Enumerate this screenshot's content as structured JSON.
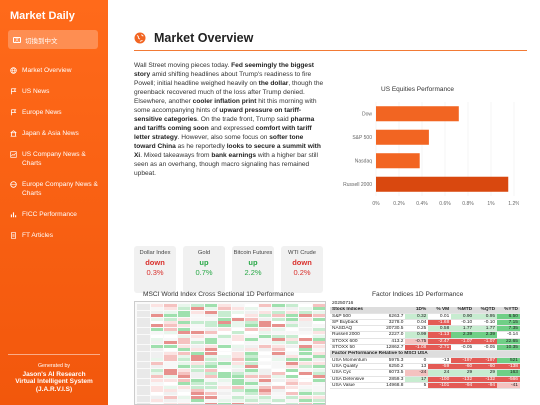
{
  "sidebar": {
    "brand": "Market Daily",
    "language_button": "切換到中文",
    "items": [
      {
        "label": "Market Overview",
        "icon": "globe-icon"
      },
      {
        "label": "US News",
        "icon": "flag-icon"
      },
      {
        "label": "Europe News",
        "icon": "flag-icon"
      },
      {
        "label": "Japan & Asia News",
        "icon": "building-icon"
      },
      {
        "label": "US Company News & Charts",
        "icon": "chart-icon"
      },
      {
        "label": "Europe Company News & Charts",
        "icon": "globe-icon"
      },
      {
        "label": "FICC Performance",
        "icon": "bar-chart-icon"
      },
      {
        "label": "FT Articles",
        "icon": "document-icon"
      }
    ],
    "credit_line1": "Generated by",
    "credit_line2": "Jason's AI Research",
    "credit_line3": "Virtual Intelligent System",
    "credit_line4": "(J.A.R.V.I.S)"
  },
  "main": {
    "title": "Market Overview"
  },
  "cards": [
    {
      "name": "Dollar Index",
      "direction": "down",
      "pct": "0.3%"
    },
    {
      "name": "Gold",
      "direction": "up",
      "pct": "0.7%"
    },
    {
      "name": "Bitcoin Futures",
      "direction": "up",
      "pct": "2.2%"
    },
    {
      "name": "WTI Crude",
      "direction": "down",
      "pct": "0.2%"
    }
  ],
  "chart_data": {
    "type": "bar",
    "title": "US Equities Performance",
    "categories": [
      "Dow",
      "S&P 500",
      "Nasdaq",
      "Russell 2000"
    ],
    "values": [
      0.72,
      0.46,
      0.38,
      1.15
    ],
    "xlim": [
      0,
      1.2
    ],
    "xticks": [
      "0%",
      "0.2%",
      "0.4%",
      "0.6%",
      "0.8%",
      "1%",
      "1.2%"
    ],
    "color": "#f26522"
  },
  "heatmap": {
    "title": "MSCI World Index Cross Sectional 1D Performance"
  },
  "factor": {
    "title": "Factor Indices 1D Performance",
    "date": "20250716",
    "header": [
      "Stock Indices",
      "1D%",
      "% VM",
      "%MTD",
      "%QTD",
      "%YTD"
    ],
    "rows": [
      [
        "S&P 500",
        "6263.7",
        "0.32",
        "0.01",
        "0.90",
        "0.95",
        "6.50"
      ],
      [
        "SP Buyback",
        "3278.0",
        "0.04",
        "-1.68",
        "-0.10",
        "-0.10",
        "7.15"
      ],
      [
        "NASDAQ",
        "20730.5",
        "0.25",
        "0.58",
        "1.77",
        "1.77",
        "7.35"
      ],
      [
        "Russell 2000",
        "2227.0",
        "0.99",
        "-1.13",
        "2.39",
        "2.39",
        "-0.14"
      ],
      [
        "STOXX 600",
        "413.2",
        "-0.75",
        "-2.47",
        "-1.07",
        "-1.07",
        "22.65"
      ],
      [
        "STOXX 50",
        "12862.7",
        "-1.08",
        "-2.71",
        "-0.05",
        "-0.05",
        "10.35"
      ]
    ],
    "subheader": "Factor Performance Relative to MSCI USA",
    "rows2": [
      [
        "USA Momentum",
        "5975.3",
        "0",
        "-13",
        "-197",
        "-197",
        "521"
      ],
      [
        "USA Quality",
        "6250.2",
        "13",
        "-59",
        "-60",
        "-60",
        "-138"
      ],
      [
        "USA Cyc",
        "6073.5",
        "-24",
        "24",
        "29",
        "29",
        "163"
      ],
      [
        "USA Defensive",
        "2859.3",
        "17",
        "-100",
        "-132",
        "-132",
        "-566"
      ],
      [
        "USA Value",
        "14968.8",
        "5",
        "-101",
        "-94",
        "-94",
        "-41"
      ]
    ]
  }
}
